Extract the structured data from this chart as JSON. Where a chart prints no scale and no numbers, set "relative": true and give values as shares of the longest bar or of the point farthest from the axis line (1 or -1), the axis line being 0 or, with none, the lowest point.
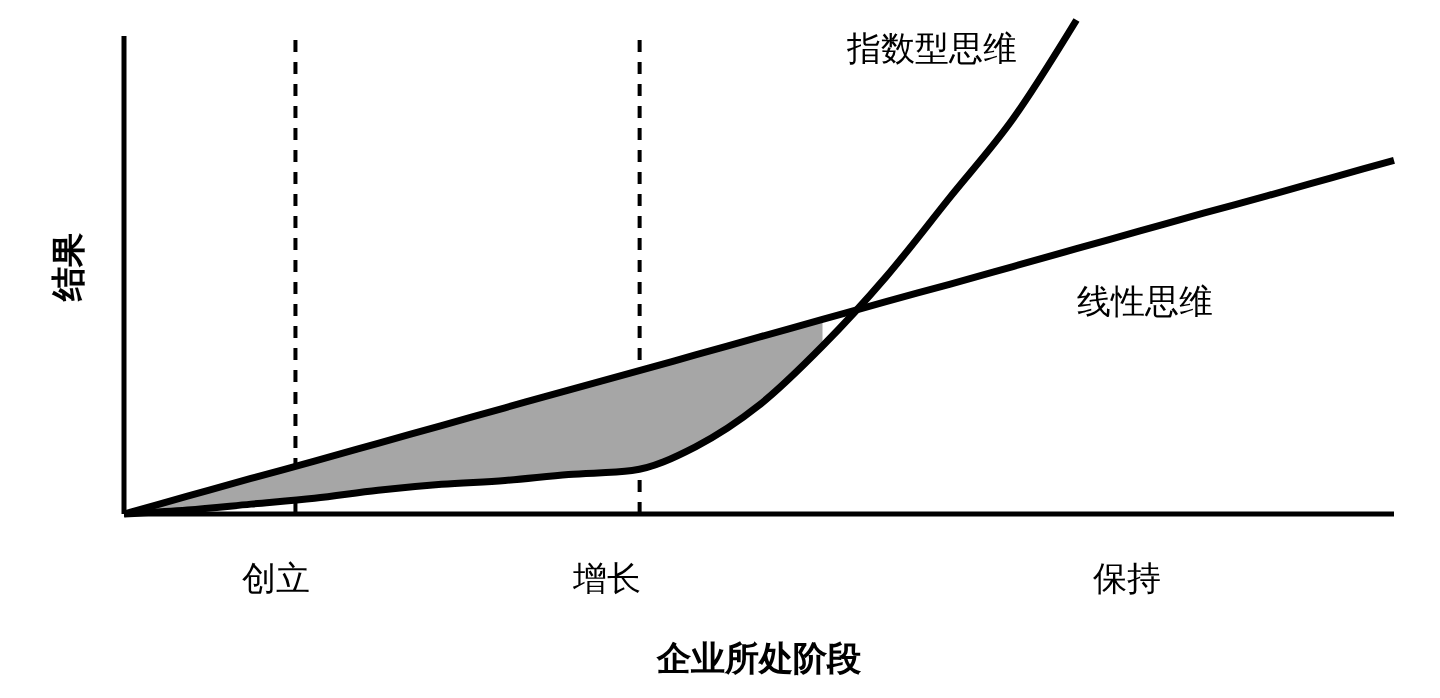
{
  "chart_data": {
    "type": "line",
    "relative": true,
    "xlabel": "企业所处阶段",
    "ylabel": "结果",
    "marker": "none",
    "line_style": "solid",
    "categories": [
      null,
      null,
      null,
      null,
      null,
      null,
      null,
      null,
      null,
      null,
      null,
      null,
      null,
      null,
      null,
      null,
      null,
      null,
      null,
      null,
      null
    ],
    "series": [
      {
        "name": "指数型思维",
        "color": "#000000",
        "values": [
          0,
          0.008,
          0.02,
          0.032,
          0.048,
          0.06,
          0.068,
          0.08,
          0.088,
          0.136,
          0.22,
          0.34,
          0.48,
          0.64,
          0.8,
          1,
          null,
          null,
          null,
          null,
          null
        ],
        "lower": [
          0,
          0.008,
          0.02,
          0.032,
          0.048,
          0.06,
          0.068,
          0.08,
          0.088,
          0.136,
          0.22,
          0.34,
          null,
          null,
          null,
          null,
          null,
          null,
          null,
          null,
          null
        ],
        "upper": [
          0,
          0.036,
          0.072,
          0.107,
          0.143,
          0.179,
          0.215,
          0.251,
          0.286,
          0.322,
          0.358,
          0.394,
          null,
          null,
          null,
          null,
          null,
          null,
          null,
          null,
          null
        ]
      },
      {
        "name": "线性思维",
        "color": "#000000",
        "values": [
          0,
          0.036,
          0.072,
          0.107,
          0.143,
          0.179,
          0.215,
          0.251,
          0.286,
          0.322,
          0.358,
          0.394,
          0.43,
          0.465,
          0.501,
          0.537,
          0.573,
          0.609,
          0.644,
          0.68,
          0.716
        ]
      }
    ],
    "annotations": [
      "创立",
      "增长",
      "保持"
    ]
  }
}
